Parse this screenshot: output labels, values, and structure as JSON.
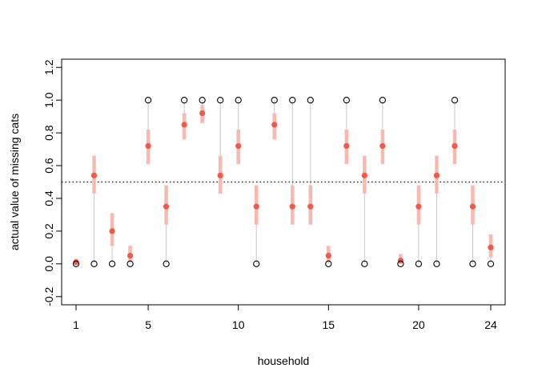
{
  "chart_data": {
    "type": "scatter",
    "title": "",
    "xlabel": "household",
    "ylabel": "actual value of missing cats",
    "xlim": [
      0.2,
      24.8
    ],
    "ylim": [
      -0.25,
      1.25
    ],
    "x_ticks": [
      1,
      5,
      10,
      15,
      20,
      24
    ],
    "y_ticks": [
      -0.2,
      0.0,
      0.2,
      0.4,
      0.6,
      0.8,
      1.0,
      1.2
    ],
    "reference_line": {
      "y": 0.5,
      "style": "dotted"
    },
    "colors": {
      "estimate": "#F05A4A",
      "interval": "#F9B8B0",
      "connector": "#C8C8C8",
      "observed": "#000000"
    },
    "series": [
      {
        "name": "",
        "role": "observed",
        "marker": "open-circle",
        "points": [
          [
            1,
            0
          ],
          [
            2,
            0
          ],
          [
            3,
            0
          ],
          [
            4,
            0
          ],
          [
            5,
            1
          ],
          [
            6,
            0
          ],
          [
            7,
            1
          ],
          [
            8,
            1
          ],
          [
            9,
            1
          ],
          [
            10,
            1
          ],
          [
            11,
            0
          ],
          [
            12,
            1
          ],
          [
            13,
            1
          ],
          [
            14,
            1
          ],
          [
            15,
            0
          ],
          [
            16,
            1
          ],
          [
            17,
            0
          ],
          [
            18,
            1
          ],
          [
            19,
            0
          ],
          [
            20,
            0
          ],
          [
            21,
            0
          ],
          [
            22,
            1
          ],
          [
            23,
            0
          ],
          [
            24,
            0
          ]
        ]
      },
      {
        "name": "",
        "role": "estimate",
        "marker": "filled-circle",
        "points": [
          [
            1,
            0.01
          ],
          [
            2,
            0.54
          ],
          [
            3,
            0.2
          ],
          [
            4,
            0.05
          ],
          [
            5,
            0.72
          ],
          [
            6,
            0.35
          ],
          [
            7,
            0.85
          ],
          [
            8,
            0.92
          ],
          [
            9,
            0.54
          ],
          [
            10,
            0.72
          ],
          [
            11,
            0.35
          ],
          [
            12,
            0.85
          ],
          [
            13,
            0.35
          ],
          [
            14,
            0.35
          ],
          [
            15,
            0.05
          ],
          [
            16,
            0.72
          ],
          [
            17,
            0.54
          ],
          [
            18,
            0.72
          ],
          [
            19,
            0.02
          ],
          [
            20,
            0.35
          ],
          [
            21,
            0.54
          ],
          [
            22,
            0.72
          ],
          [
            23,
            0.35
          ],
          [
            24,
            0.1
          ]
        ],
        "intervals": [
          [
            1,
            0.0,
            0.03
          ],
          [
            2,
            0.43,
            0.66
          ],
          [
            3,
            0.11,
            0.31
          ],
          [
            4,
            0.01,
            0.11
          ],
          [
            5,
            0.61,
            0.82
          ],
          [
            6,
            0.24,
            0.48
          ],
          [
            7,
            0.76,
            0.92
          ],
          [
            8,
            0.86,
            0.97
          ],
          [
            9,
            0.43,
            0.66
          ],
          [
            10,
            0.61,
            0.82
          ],
          [
            11,
            0.24,
            0.48
          ],
          [
            12,
            0.76,
            0.92
          ],
          [
            13,
            0.24,
            0.48
          ],
          [
            14,
            0.24,
            0.48
          ],
          [
            15,
            0.01,
            0.11
          ],
          [
            16,
            0.61,
            0.82
          ],
          [
            17,
            0.43,
            0.66
          ],
          [
            18,
            0.61,
            0.82
          ],
          [
            19,
            0.0,
            0.06
          ],
          [
            20,
            0.24,
            0.48
          ],
          [
            21,
            0.43,
            0.66
          ],
          [
            22,
            0.61,
            0.82
          ],
          [
            23,
            0.24,
            0.48
          ],
          [
            24,
            0.04,
            0.18
          ]
        ]
      }
    ]
  }
}
